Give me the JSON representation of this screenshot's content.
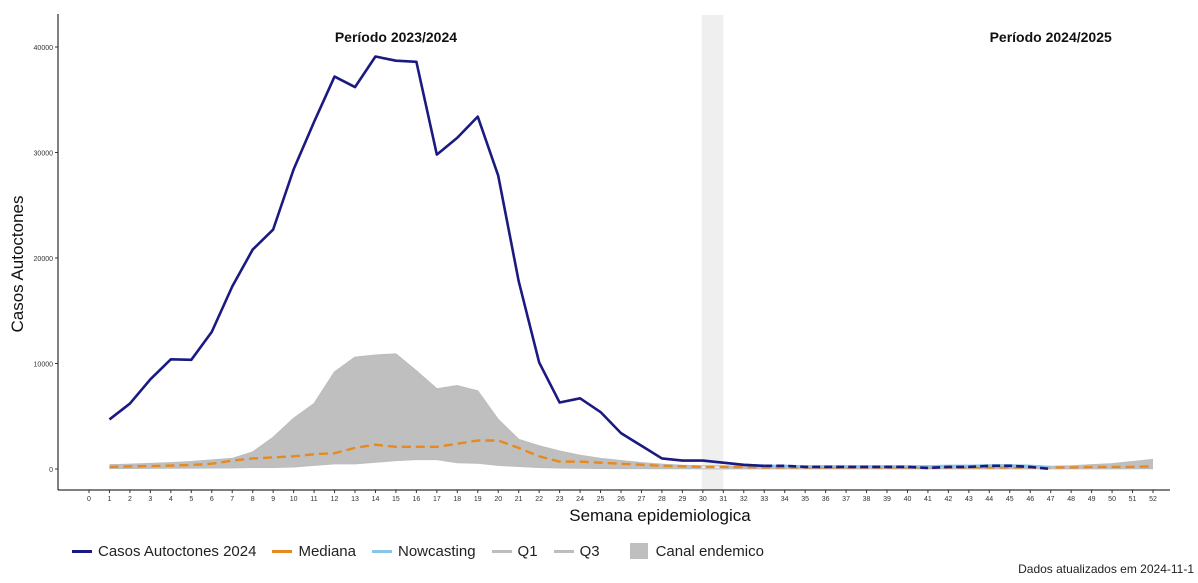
{
  "chart_data": {
    "type": "line",
    "title": "",
    "xlabel": "Semana epidemiologica",
    "ylabel": "Casos Autoctones",
    "xlim": [
      0,
      52
    ],
    "ylim": [
      0,
      40000
    ],
    "x_ticks": [
      0,
      1,
      2,
      3,
      4,
      5,
      6,
      7,
      8,
      9,
      10,
      11,
      12,
      13,
      14,
      15,
      16,
      17,
      18,
      19,
      20,
      21,
      22,
      23,
      24,
      25,
      26,
      27,
      28,
      29,
      30,
      31,
      32,
      33,
      34,
      35,
      36,
      37,
      38,
      39,
      40,
      41,
      42,
      43,
      44,
      45,
      46,
      47,
      48,
      49,
      50,
      51,
      52
    ],
    "y_ticks": [
      0,
      10000,
      20000,
      30000,
      40000
    ],
    "grid": false,
    "legend_position": "bottom",
    "period_labels": [
      "Período 2023/2024",
      "Período 2024/2025"
    ],
    "period_divider_weeks": [
      30,
      31
    ],
    "series": [
      {
        "name": "Casos Autoctones 2024",
        "color": "#1a1a80",
        "style": "solid",
        "x": [
          1,
          2,
          3,
          4,
          5,
          6,
          7,
          8,
          9,
          10,
          11,
          12,
          13,
          14,
          15,
          16,
          17,
          18,
          19,
          20,
          21,
          22,
          23,
          24,
          25,
          26,
          27,
          28,
          29,
          30,
          31,
          32,
          33,
          34,
          35,
          36,
          37,
          38,
          39,
          40,
          41,
          42,
          43,
          44,
          45,
          46,
          47
        ],
        "values": [
          4700,
          6200,
          8500,
          10400,
          10350,
          13000,
          17300,
          20800,
          22700,
          28400,
          32900,
          37200,
          36200,
          39100,
          38700,
          38600,
          29800,
          31400,
          33400,
          27800,
          17800,
          10100,
          6300,
          6700,
          5400,
          3400,
          2200,
          1000,
          800,
          800,
          600,
          400,
          300,
          300,
          200,
          200,
          200,
          200,
          200,
          200,
          100,
          200,
          200,
          300,
          300,
          200,
          0
        ]
      },
      {
        "name": "Mediana",
        "color": "#e68a1f",
        "style": "dashed",
        "x": [
          1,
          2,
          3,
          4,
          5,
          6,
          7,
          8,
          9,
          10,
          11,
          12,
          13,
          14,
          15,
          16,
          17,
          18,
          19,
          20,
          21,
          22,
          23,
          24,
          25,
          26,
          27,
          28,
          29,
          30,
          31,
          32,
          33,
          34,
          35,
          36,
          37,
          38,
          39,
          40,
          41,
          42,
          43,
          44,
          45,
          46,
          47,
          48,
          49,
          50,
          51,
          52
        ],
        "values": [
          200,
          250,
          280,
          320,
          380,
          500,
          800,
          1000,
          1100,
          1200,
          1400,
          1500,
          2000,
          2300,
          2100,
          2100,
          2100,
          2400,
          2700,
          2700,
          2000,
          1200,
          700,
          700,
          600,
          500,
          400,
          300,
          250,
          200,
          200,
          180,
          150,
          150,
          150,
          150,
          150,
          150,
          150,
          150,
          150,
          150,
          150,
          150,
          150,
          150,
          150,
          150,
          180,
          200,
          200,
          250
        ]
      },
      {
        "name": "Nowcasting",
        "color": "#87c6e8",
        "style": "solid",
        "x": [
          30,
          31,
          32,
          33,
          34,
          35,
          36,
          37,
          38,
          39,
          40,
          41,
          42,
          43,
          44,
          45,
          46,
          47
        ],
        "values": [
          800,
          600,
          400,
          300,
          300,
          250,
          250,
          250,
          250,
          250,
          250,
          250,
          300,
          300,
          350,
          350,
          300,
          200
        ]
      },
      {
        "name": "Q1",
        "color": "#bdbdbd",
        "style": "solid",
        "x": [
          1,
          2,
          3,
          4,
          5,
          6,
          7,
          8,
          9,
          10,
          11,
          12,
          13,
          14,
          15,
          16,
          17,
          18,
          19,
          20,
          21,
          22,
          23,
          24,
          25,
          26,
          27,
          28,
          29,
          30,
          31,
          32,
          33,
          34,
          35,
          36,
          37,
          38,
          39,
          40,
          41,
          42,
          43,
          44,
          45,
          46,
          47,
          48,
          49,
          50,
          51,
          52
        ],
        "values": [
          50,
          60,
          70,
          80,
          90,
          100,
          120,
          150,
          150,
          200,
          350,
          500,
          500,
          650,
          800,
          900,
          900,
          600,
          550,
          350,
          250,
          150,
          100,
          80,
          60,
          50,
          40,
          30,
          30,
          20,
          20,
          20,
          20,
          20,
          20,
          20,
          20,
          20,
          20,
          20,
          20,
          20,
          20,
          20,
          20,
          20,
          20,
          20,
          20,
          20,
          30,
          30
        ]
      },
      {
        "name": "Q3",
        "color": "#bdbdbd",
        "style": "solid",
        "x": [
          1,
          2,
          3,
          4,
          5,
          6,
          7,
          8,
          9,
          10,
          11,
          12,
          13,
          14,
          15,
          16,
          17,
          18,
          19,
          20,
          21,
          22,
          23,
          24,
          25,
          26,
          27,
          28,
          29,
          30,
          31,
          32,
          33,
          34,
          35,
          36,
          37,
          38,
          39,
          40,
          41,
          42,
          43,
          44,
          45,
          46,
          47,
          48,
          49,
          50,
          51,
          52
        ],
        "values": [
          400,
          450,
          520,
          600,
          700,
          850,
          1000,
          1600,
          3000,
          4800,
          6200,
          9200,
          10600,
          10800,
          10900,
          9300,
          7600,
          7900,
          7400,
          4700,
          2800,
          2200,
          1700,
          1300,
          1000,
          800,
          600,
          450,
          350,
          300,
          300,
          250,
          250,
          250,
          250,
          250,
          250,
          250,
          250,
          250,
          250,
          250,
          250,
          250,
          250,
          250,
          250,
          300,
          400,
          500,
          700,
          900
        ]
      }
    ],
    "band": {
      "name": "Canal endemico",
      "color": "#bfbfbf",
      "lower_series": "Q1",
      "upper_series": "Q3"
    }
  },
  "legend": {
    "items": [
      {
        "label": "Casos Autoctones 2024",
        "color": "#1a1a80",
        "kind": "line"
      },
      {
        "label": "Mediana",
        "color": "#e68a1f",
        "kind": "line"
      },
      {
        "label": "Nowcasting",
        "color": "#87c6e8",
        "kind": "line"
      },
      {
        "label": "Q1",
        "color": "#bdbdbd",
        "kind": "line"
      },
      {
        "label": "Q3",
        "color": "#bdbdbd",
        "kind": "line"
      },
      {
        "label": "Canal endemico",
        "color": "#bfbfbf",
        "kind": "box"
      }
    ]
  },
  "footer": {
    "text": "Dados atualizados em 2024-11-1"
  }
}
